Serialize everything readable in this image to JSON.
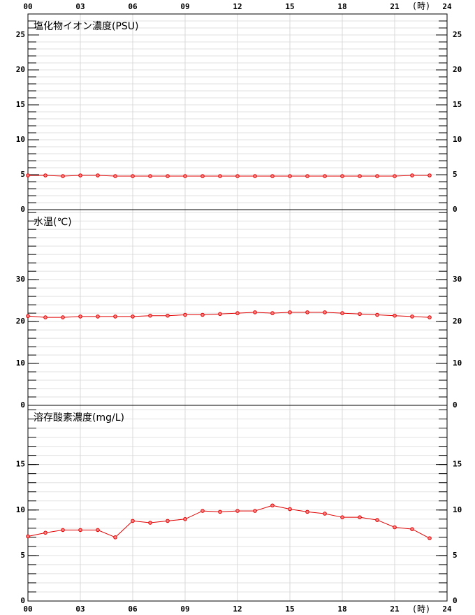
{
  "chart_data": [
    {
      "type": "line",
      "title": "塩化物イオン濃度(PSU)",
      "x_label": "(時)",
      "x_label_pos": "top",
      "x": [
        0,
        1,
        2,
        3,
        4,
        5,
        6,
        7,
        8,
        9,
        10,
        11,
        12,
        13,
        14,
        15,
        16,
        17,
        18,
        19,
        20,
        21,
        22,
        23
      ],
      "values": [
        4.9,
        4.9,
        4.8,
        4.9,
        4.9,
        4.8,
        4.8,
        4.8,
        4.8,
        4.8,
        4.8,
        4.8,
        4.8,
        4.8,
        4.8,
        4.8,
        4.8,
        4.8,
        4.8,
        4.8,
        4.8,
        4.8,
        4.9,
        4.9
      ],
      "color": "#e00000",
      "xlim": [
        0,
        24
      ],
      "xticks": [
        {
          "value": 0,
          "label": "00"
        },
        {
          "value": 3,
          "label": "03"
        },
        {
          "value": 6,
          "label": "06"
        },
        {
          "value": 9,
          "label": "09"
        },
        12,
        15,
        18,
        21,
        24
      ],
      "ylim": [
        0,
        28
      ],
      "yticks": [
        0,
        5,
        10,
        15,
        20,
        25
      ],
      "yminor": 1,
      "grid": true
    },
    {
      "type": "line",
      "title": "水温(℃)",
      "x_label_pos": "none",
      "x": [
        0,
        1,
        2,
        3,
        4,
        5,
        6,
        7,
        8,
        9,
        10,
        11,
        12,
        13,
        14,
        15,
        16,
        17,
        18,
        19,
        20,
        21,
        22,
        23
      ],
      "values": [
        21.3,
        21.0,
        21.0,
        21.2,
        21.2,
        21.2,
        21.2,
        21.4,
        21.4,
        21.6,
        21.6,
        21.8,
        22.0,
        22.2,
        22.0,
        22.2,
        22.2,
        22.2,
        22.0,
        21.8,
        21.6,
        21.4,
        21.2,
        21.0
      ],
      "color": "#e00000",
      "xlim": [
        0,
        24
      ],
      "xticks": [
        {
          "value": 0,
          "label": "00"
        },
        {
          "value": 3,
          "label": "03"
        },
        {
          "value": 6,
          "label": "06"
        },
        {
          "value": 9,
          "label": "09"
        },
        12,
        15,
        18,
        21,
        24
      ],
      "ylim": [
        0,
        46.7
      ],
      "yticks": [
        0,
        10,
        20,
        30
      ],
      "yminor": 2,
      "grid": true
    },
    {
      "type": "line",
      "title": "溶存酸素濃度(mg/L)",
      "x_label": "(時)",
      "x_label_pos": "bottom",
      "x": [
        0,
        1,
        2,
        3,
        4,
        5,
        6,
        7,
        8,
        9,
        10,
        11,
        12,
        13,
        14,
        15,
        16,
        17,
        18,
        19,
        20,
        21,
        22,
        23
      ],
      "values": [
        7.1,
        7.5,
        7.8,
        7.8,
        7.8,
        7.0,
        8.8,
        8.6,
        8.8,
        9.0,
        9.9,
        9.8,
        9.9,
        9.9,
        10.5,
        10.1,
        9.8,
        9.6,
        9.2,
        9.2,
        8.9,
        8.1,
        7.9,
        6.9
      ],
      "color": "#e00000",
      "xlim": [
        0,
        24
      ],
      "xticks": [
        {
          "value": 0,
          "label": "00"
        },
        {
          "value": 3,
          "label": "03"
        },
        {
          "value": 6,
          "label": "06"
        },
        {
          "value": 9,
          "label": "09"
        },
        12,
        15,
        18,
        21,
        24
      ],
      "ylim": [
        0,
        21.5
      ],
      "yticks": [
        0,
        5,
        10,
        15
      ],
      "yminor": 1,
      "grid": true
    }
  ]
}
